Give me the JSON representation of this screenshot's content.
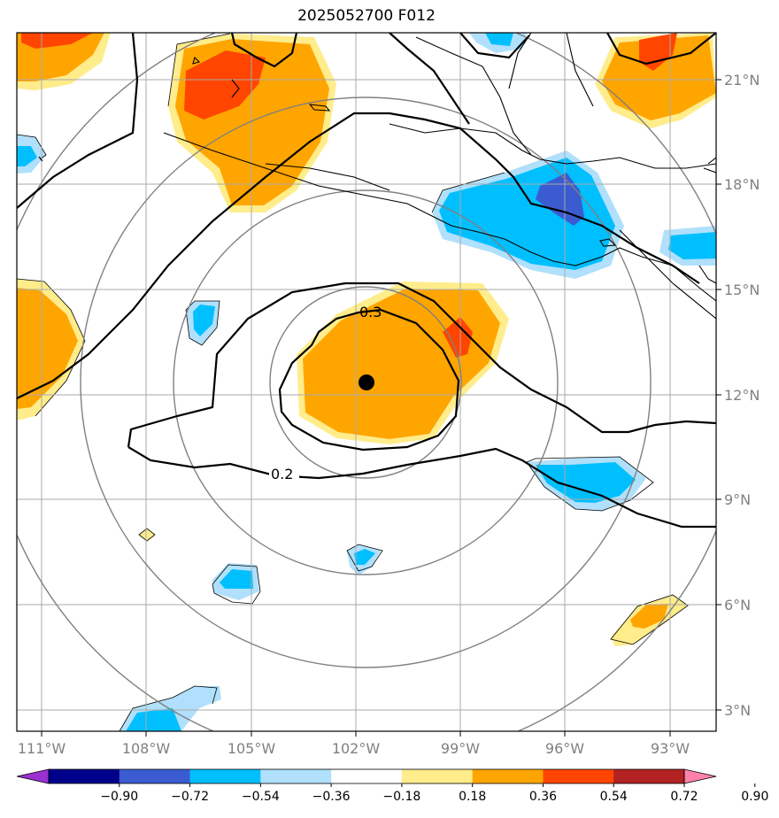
{
  "title": "2025052700 F012",
  "map": {
    "lon_labels": [
      "111°W",
      "108°W",
      "105°W",
      "102°W",
      "99°W",
      "96°W",
      "93°W"
    ],
    "lat_labels": [
      "21°N",
      "18°N",
      "15°N",
      "12°N",
      "9°N",
      "6°N",
      "3°N"
    ],
    "contour_labels": [
      "0.3",
      "0.2"
    ],
    "center_marker": "storm-center"
  },
  "colorbar": {
    "colors": [
      "#9b30d0",
      "#00008b",
      "#3b5bd0",
      "#00bfff",
      "#b0e0fb",
      "#ffffff",
      "#ffec8b",
      "#ffa500",
      "#ff4500",
      "#b22222",
      "#ff82ab"
    ],
    "tick_labels": [
      "−0.90",
      "−0.72",
      "−0.54",
      "−0.36",
      "−0.18",
      "0.18",
      "0.36",
      "0.54",
      "0.72",
      "0.90"
    ]
  }
}
